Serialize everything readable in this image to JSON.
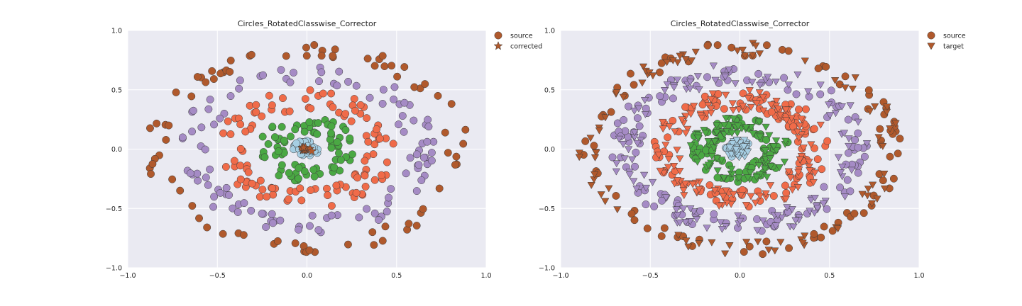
{
  "chart_data": [
    {
      "type": "scatter",
      "title": "Circles_RotatedClasswise_Corrector",
      "xlabel": "",
      "ylabel": "",
      "xlim": [
        -1.0,
        1.0
      ],
      "ylim": [
        -1.0,
        1.0
      ],
      "x_ticks": [
        -1.0,
        -0.5,
        0.0,
        0.5,
        1.0
      ],
      "y_ticks": [
        -1.0,
        -0.5,
        0.0,
        0.5,
        1.0
      ],
      "x_tick_labels": [
        "−1.0",
        "−0.5",
        "0.0",
        "0.5",
        "1.0"
      ],
      "y_tick_labels": [
        "−1.0",
        "−0.5",
        "0.0",
        "0.5",
        "1.0"
      ],
      "grid": true,
      "legend_position": "outside-top-right",
      "legend": [
        {
          "label": "source",
          "marker": "circle"
        },
        {
          "label": "corrected",
          "marker": "star"
        }
      ],
      "series": [
        {
          "name": "source",
          "class": "outer ring",
          "marker": "circle",
          "color": "#b0592c",
          "points_approx": 80,
          "radius_range": [
            0.78,
            0.9
          ]
        },
        {
          "name": "source",
          "class": "second ring",
          "marker": "circle",
          "color": "#a58bc5",
          "points_approx": 110,
          "radius_range": [
            0.55,
            0.72
          ]
        },
        {
          "name": "source",
          "class": "third ring",
          "marker": "circle",
          "color": "#f06b49",
          "points_approx": 110,
          "radius_range": [
            0.33,
            0.5
          ]
        },
        {
          "name": "source",
          "class": "fourth ring",
          "marker": "circle",
          "color": "#4aa843",
          "points_approx": 80,
          "radius_range": [
            0.13,
            0.28
          ]
        },
        {
          "name": "source",
          "class": "center",
          "marker": "circle",
          "color": "#a6cee3",
          "points_approx": 45,
          "radius_range": [
            0.0,
            0.08
          ]
        },
        {
          "name": "corrected",
          "class": "center",
          "marker": "star",
          "color": "#b0592c",
          "points_approx": 12,
          "center": [
            0.0,
            0.0
          ],
          "spread": 0.02
        }
      ]
    },
    {
      "type": "scatter",
      "title": "Circles_RotatedClasswise_Corrector",
      "xlabel": "",
      "ylabel": "",
      "xlim": [
        -1.0,
        1.0
      ],
      "ylim": [
        -1.0,
        1.0
      ],
      "x_ticks": [
        -1.0,
        -0.5,
        0.0,
        0.5,
        1.0
      ],
      "y_ticks": [
        -1.0,
        -0.5,
        0.0,
        0.5,
        1.0
      ],
      "x_tick_labels": [
        "−1.0",
        "−0.5",
        "0.0",
        "0.5",
        "1.0"
      ],
      "y_tick_labels": [
        "−1.0",
        "−0.5",
        "0.0",
        "0.5",
        "1.0"
      ],
      "grid": true,
      "legend_position": "outside-top-right",
      "legend": [
        {
          "label": "source",
          "marker": "circle"
        },
        {
          "label": "target",
          "marker": "triangle-down"
        }
      ],
      "series": [
        {
          "name": "source",
          "class": "outer ring",
          "marker": "circle",
          "color": "#b0592c",
          "points_approx": 80,
          "radius_range": [
            0.78,
            0.9
          ]
        },
        {
          "name": "source",
          "class": "second ring",
          "marker": "circle",
          "color": "#a58bc5",
          "points_approx": 110,
          "radius_range": [
            0.55,
            0.72
          ]
        },
        {
          "name": "source",
          "class": "third ring",
          "marker": "circle",
          "color": "#f06b49",
          "points_approx": 110,
          "radius_range": [
            0.33,
            0.5
          ]
        },
        {
          "name": "source",
          "class": "fourth ring",
          "marker": "circle",
          "color": "#4aa843",
          "points_approx": 80,
          "radius_range": [
            0.13,
            0.28
          ]
        },
        {
          "name": "source",
          "class": "center",
          "marker": "circle",
          "color": "#a6cee3",
          "points_approx": 45,
          "radius_range": [
            0.0,
            0.08
          ]
        },
        {
          "name": "target",
          "class": "outer ring",
          "marker": "triangle-down",
          "color": "#b0592c",
          "points_approx": 80,
          "radius_range": [
            0.78,
            0.9
          ]
        },
        {
          "name": "target",
          "class": "second ring",
          "marker": "triangle-down",
          "color": "#a58bc5",
          "points_approx": 110,
          "radius_range": [
            0.55,
            0.72
          ]
        },
        {
          "name": "target",
          "class": "third ring",
          "marker": "triangle-down",
          "color": "#f06b49",
          "points_approx": 110,
          "radius_range": [
            0.33,
            0.5
          ]
        },
        {
          "name": "target",
          "class": "fourth ring",
          "marker": "triangle-down",
          "color": "#4aa843",
          "points_approx": 80,
          "radius_range": [
            0.13,
            0.28
          ]
        },
        {
          "name": "target",
          "class": "center",
          "marker": "triangle-down",
          "color": "#a6cee3",
          "points_approx": 45,
          "radius_range": [
            0.0,
            0.08
          ]
        }
      ]
    }
  ],
  "colors": {
    "plot_background": "#eaeaf2",
    "grid": "#ffffff",
    "marker_edge": "#3a3a3a"
  }
}
